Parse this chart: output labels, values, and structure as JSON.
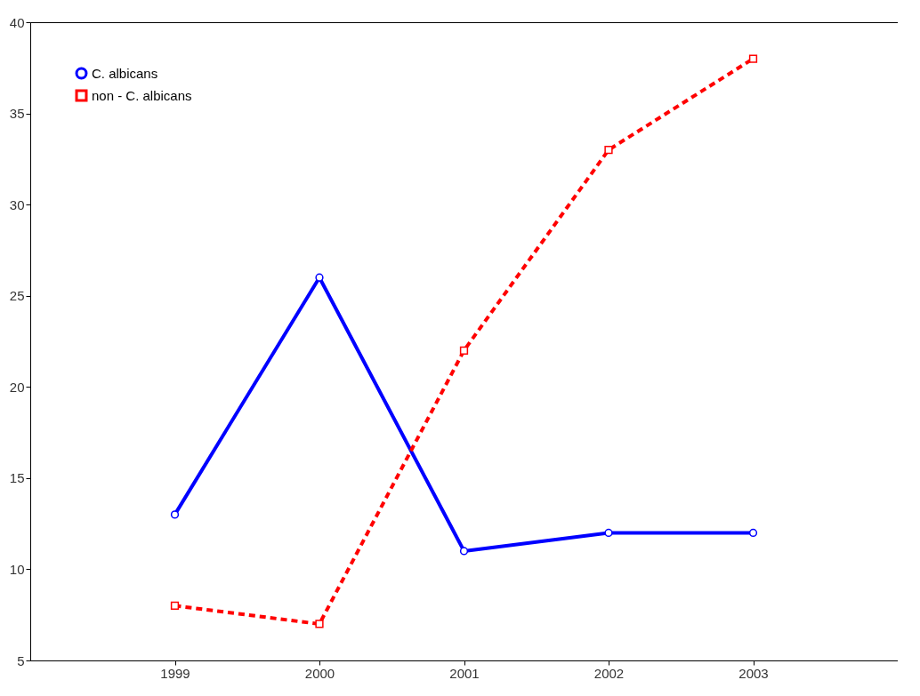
{
  "chart_data": {
    "type": "line",
    "x": [
      1999,
      2000,
      2001,
      2002,
      2003
    ],
    "xlim": [
      1998,
      2004
    ],
    "xticks": [
      1999,
      2000,
      2001,
      2002,
      2003
    ],
    "ylim": [
      5,
      40
    ],
    "yticks": [
      5,
      10,
      15,
      20,
      25,
      30,
      35,
      40
    ],
    "grid": false,
    "legend": "top left",
    "series": [
      {
        "name": "C. albicans",
        "color": "#0000ff",
        "values": [
          13,
          26,
          11,
          12,
          12
        ],
        "marker": "circle",
        "line_style": "solid"
      },
      {
        "name": "non - C. albicans",
        "color": "#ff0000",
        "values": [
          8,
          7,
          22,
          33,
          38
        ],
        "marker": "square",
        "line_style": "dashed"
      }
    ]
  }
}
